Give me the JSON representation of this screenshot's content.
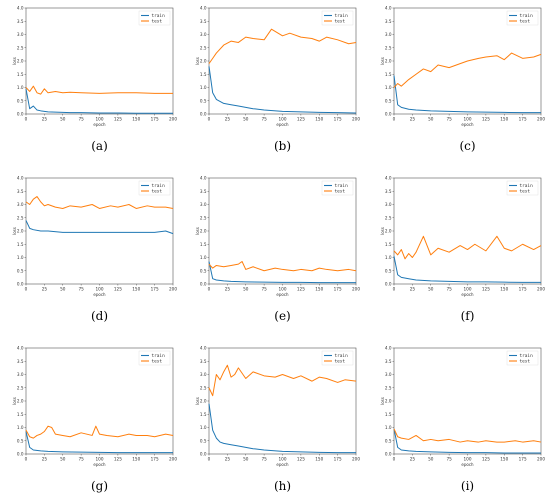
{
  "chart_data": [
    {
      "panel": "(a)",
      "type": "line",
      "xlabel": "epoch",
      "ylabel": "loss",
      "xlim": [
        0,
        200
      ],
      "ylim": [
        0,
        4.0
      ],
      "legend": "top-right",
      "xticks": [
        0,
        25,
        50,
        75,
        100,
        125,
        150,
        175,
        200
      ],
      "yticks": [
        "0.0",
        "0.5",
        "1.0",
        "1.5",
        "2.0",
        "2.5",
        "3.0",
        "3.5",
        "4.0"
      ],
      "series": [
        {
          "name": "train",
          "color": "#1f77b4",
          "x": [
            0,
            5,
            10,
            15,
            20,
            25,
            30,
            40,
            50,
            60,
            75,
            100,
            125,
            150,
            175,
            200
          ],
          "y": [
            0.95,
            0.2,
            0.3,
            0.15,
            0.12,
            0.1,
            0.08,
            0.07,
            0.06,
            0.05,
            0.05,
            0.04,
            0.04,
            0.03,
            0.03,
            0.03
          ]
        },
        {
          "name": "test",
          "color": "#ff7f0e",
          "x": [
            0,
            5,
            10,
            15,
            20,
            25,
            30,
            40,
            50,
            60,
            75,
            100,
            125,
            150,
            175,
            200
          ],
          "y": [
            1.0,
            0.85,
            1.05,
            0.8,
            0.75,
            0.95,
            0.8,
            0.85,
            0.8,
            0.82,
            0.8,
            0.78,
            0.8,
            0.8,
            0.78,
            0.78
          ]
        }
      ]
    },
    {
      "panel": "(b)",
      "type": "line",
      "xlabel": "epoch",
      "ylabel": "loss",
      "xlim": [
        0,
        200
      ],
      "ylim": [
        0,
        4.0
      ],
      "legend": "top-right",
      "xticks": [
        0,
        25,
        50,
        75,
        100,
        125,
        150,
        175,
        200
      ],
      "yticks": [
        "0.0",
        "0.5",
        "1.0",
        "1.5",
        "2.0",
        "2.5",
        "3.0",
        "3.5",
        "4.0"
      ],
      "series": [
        {
          "name": "train",
          "color": "#1f77b4",
          "x": [
            0,
            5,
            10,
            20,
            30,
            40,
            50,
            60,
            75,
            100,
            125,
            150,
            175,
            200
          ],
          "y": [
            1.8,
            0.8,
            0.55,
            0.4,
            0.35,
            0.3,
            0.25,
            0.2,
            0.15,
            0.1,
            0.08,
            0.06,
            0.05,
            0.04
          ]
        },
        {
          "name": "test",
          "color": "#ff7f0e",
          "x": [
            0,
            5,
            10,
            20,
            30,
            40,
            50,
            60,
            75,
            85,
            100,
            110,
            125,
            140,
            150,
            160,
            175,
            190,
            200
          ],
          "y": [
            1.9,
            2.1,
            2.3,
            2.6,
            2.75,
            2.7,
            2.9,
            2.85,
            2.8,
            3.2,
            2.95,
            3.05,
            2.9,
            2.85,
            2.75,
            2.9,
            2.8,
            2.65,
            2.7
          ]
        }
      ]
    },
    {
      "panel": "(c)",
      "type": "line",
      "xlabel": "epoch",
      "ylabel": "loss",
      "xlim": [
        0,
        200
      ],
      "ylim": [
        0,
        4.0
      ],
      "legend": "top-right",
      "xticks": [
        0,
        25,
        50,
        75,
        100,
        125,
        150,
        175,
        200
      ],
      "yticks": [
        "0.0",
        "0.5",
        "1.0",
        "1.5",
        "2.0",
        "2.5",
        "3.0",
        "3.5",
        "4.0"
      ],
      "series": [
        {
          "name": "train",
          "color": "#1f77b4",
          "x": [
            0,
            5,
            10,
            20,
            30,
            50,
            75,
            100,
            125,
            150,
            175,
            200
          ],
          "y": [
            1.45,
            0.35,
            0.25,
            0.18,
            0.15,
            0.12,
            0.1,
            0.08,
            0.07,
            0.06,
            0.05,
            0.05
          ]
        },
        {
          "name": "test",
          "color": "#ff7f0e",
          "x": [
            0,
            5,
            10,
            20,
            30,
            40,
            50,
            60,
            75,
            90,
            100,
            115,
            125,
            140,
            150,
            160,
            175,
            190,
            200
          ],
          "y": [
            1.0,
            1.15,
            1.05,
            1.3,
            1.5,
            1.7,
            1.6,
            1.85,
            1.75,
            1.9,
            2.0,
            2.1,
            2.15,
            2.2,
            2.05,
            2.3,
            2.1,
            2.15,
            2.25
          ]
        }
      ]
    },
    {
      "panel": "(d)",
      "type": "line",
      "xlabel": "epoch",
      "ylabel": "loss",
      "xlim": [
        0,
        200
      ],
      "ylim": [
        0,
        4.0
      ],
      "legend": "top-right",
      "xticks": [
        0,
        25,
        50,
        75,
        100,
        125,
        150,
        175,
        200
      ],
      "yticks": [
        "0.0",
        "0.5",
        "1.0",
        "1.5",
        "2.0",
        "2.5",
        "3.0",
        "3.5",
        "4.0"
      ],
      "series": [
        {
          "name": "train",
          "color": "#1f77b4",
          "x": [
            0,
            5,
            10,
            20,
            30,
            50,
            75,
            100,
            125,
            150,
            175,
            190,
            200
          ],
          "y": [
            2.4,
            2.1,
            2.05,
            2.0,
            2.0,
            1.95,
            1.95,
            1.95,
            1.95,
            1.95,
            1.95,
            2.0,
            1.9
          ]
        },
        {
          "name": "test",
          "color": "#ff7f0e",
          "x": [
            0,
            5,
            10,
            15,
            20,
            25,
            30,
            40,
            50,
            60,
            75,
            90,
            100,
            115,
            125,
            140,
            150,
            165,
            175,
            190,
            200
          ],
          "y": [
            3.1,
            3.0,
            3.2,
            3.3,
            3.1,
            2.95,
            3.0,
            2.9,
            2.85,
            2.95,
            2.9,
            3.0,
            2.85,
            2.95,
            2.9,
            3.0,
            2.85,
            2.95,
            2.9,
            2.9,
            2.85
          ]
        }
      ]
    },
    {
      "panel": "(e)",
      "type": "line",
      "xlabel": "epoch",
      "ylabel": "loss",
      "xlim": [
        0,
        200
      ],
      "ylim": [
        0,
        4.0
      ],
      "legend": "top-right",
      "xticks": [
        0,
        25,
        50,
        75,
        100,
        125,
        150,
        175,
        200
      ],
      "yticks": [
        "0.0",
        "0.5",
        "1.0",
        "1.5",
        "2.0",
        "2.5",
        "3.0",
        "3.5",
        "4.0"
      ],
      "series": [
        {
          "name": "train",
          "color": "#1f77b4",
          "x": [
            0,
            5,
            10,
            20,
            30,
            50,
            75,
            100,
            125,
            150,
            175,
            200
          ],
          "y": [
            0.85,
            0.2,
            0.15,
            0.12,
            0.1,
            0.08,
            0.07,
            0.06,
            0.06,
            0.05,
            0.05,
            0.05
          ]
        },
        {
          "name": "test",
          "color": "#ff7f0e",
          "x": [
            0,
            5,
            10,
            20,
            30,
            40,
            45,
            50,
            60,
            75,
            90,
            100,
            115,
            125,
            140,
            150,
            160,
            175,
            190,
            200
          ],
          "y": [
            0.75,
            0.6,
            0.7,
            0.65,
            0.7,
            0.75,
            0.85,
            0.55,
            0.65,
            0.5,
            0.6,
            0.55,
            0.5,
            0.55,
            0.5,
            0.6,
            0.55,
            0.5,
            0.55,
            0.5
          ]
        }
      ]
    },
    {
      "panel": "(f)",
      "type": "line",
      "xlabel": "epoch",
      "ylabel": "loss",
      "xlim": [
        0,
        200
      ],
      "ylim": [
        0,
        4.0
      ],
      "legend": "top-right",
      "xticks": [
        0,
        25,
        50,
        75,
        100,
        125,
        150,
        175,
        200
      ],
      "yticks": [
        "0.0",
        "0.5",
        "1.0",
        "1.5",
        "2.0",
        "2.5",
        "3.0",
        "3.5",
        "4.0"
      ],
      "series": [
        {
          "name": "train",
          "color": "#1f77b4",
          "x": [
            0,
            5,
            10,
            20,
            30,
            50,
            75,
            100,
            125,
            150,
            175,
            200
          ],
          "y": [
            1.05,
            0.35,
            0.25,
            0.2,
            0.15,
            0.12,
            0.1,
            0.08,
            0.08,
            0.07,
            0.06,
            0.06
          ]
        },
        {
          "name": "test",
          "color": "#ff7f0e",
          "x": [
            0,
            5,
            10,
            15,
            20,
            25,
            30,
            40,
            50,
            60,
            75,
            90,
            100,
            110,
            125,
            140,
            150,
            160,
            175,
            190,
            200
          ],
          "y": [
            1.25,
            1.1,
            1.3,
            0.95,
            1.15,
            1.0,
            1.2,
            1.8,
            1.1,
            1.35,
            1.2,
            1.45,
            1.3,
            1.5,
            1.25,
            1.8,
            1.35,
            1.25,
            1.5,
            1.3,
            1.45
          ]
        }
      ]
    },
    {
      "panel": "(g)",
      "type": "line",
      "xlabel": "epoch",
      "ylabel": "loss",
      "xlim": [
        0,
        200
      ],
      "ylim": [
        0,
        4.0
      ],
      "legend": "top-right",
      "xticks": [
        0,
        25,
        50,
        75,
        100,
        125,
        150,
        175,
        200
      ],
      "yticks": [
        "0.0",
        "0.5",
        "1.0",
        "1.5",
        "2.0",
        "2.5",
        "3.0",
        "3.5",
        "4.0"
      ],
      "series": [
        {
          "name": "train",
          "color": "#1f77b4",
          "x": [
            0,
            5,
            10,
            20,
            30,
            50,
            75,
            100,
            125,
            150,
            175,
            200
          ],
          "y": [
            0.85,
            0.25,
            0.15,
            0.12,
            0.1,
            0.08,
            0.07,
            0.06,
            0.05,
            0.05,
            0.05,
            0.05
          ]
        },
        {
          "name": "test",
          "color": "#ff7f0e",
          "x": [
            0,
            5,
            10,
            15,
            20,
            25,
            30,
            35,
            40,
            50,
            60,
            75,
            90,
            95,
            100,
            110,
            125,
            140,
            150,
            165,
            175,
            190,
            200
          ],
          "y": [
            0.9,
            0.65,
            0.6,
            0.7,
            0.75,
            0.85,
            1.05,
            1.0,
            0.75,
            0.7,
            0.65,
            0.8,
            0.7,
            1.05,
            0.75,
            0.7,
            0.65,
            0.75,
            0.7,
            0.7,
            0.65,
            0.75,
            0.7
          ]
        }
      ]
    },
    {
      "panel": "(h)",
      "type": "line",
      "xlabel": "epoch",
      "ylabel": "loss",
      "xlim": [
        0,
        200
      ],
      "ylim": [
        0,
        4.0
      ],
      "legend": "top-right",
      "xticks": [
        0,
        25,
        50,
        75,
        100,
        125,
        150,
        175,
        200
      ],
      "yticks": [
        "0.0",
        "0.5",
        "1.0",
        "1.5",
        "2.0",
        "2.5",
        "3.0",
        "3.5",
        "4.0"
      ],
      "series": [
        {
          "name": "train",
          "color": "#1f77b4",
          "x": [
            0,
            5,
            10,
            15,
            20,
            30,
            40,
            50,
            60,
            75,
            100,
            125,
            150,
            175,
            200
          ],
          "y": [
            1.9,
            0.9,
            0.6,
            0.45,
            0.4,
            0.35,
            0.3,
            0.25,
            0.2,
            0.15,
            0.1,
            0.08,
            0.06,
            0.05,
            0.05
          ]
        },
        {
          "name": "test",
          "color": "#ff7f0e",
          "x": [
            0,
            5,
            10,
            15,
            20,
            25,
            30,
            35,
            40,
            50,
            60,
            75,
            90,
            100,
            115,
            125,
            140,
            150,
            160,
            175,
            185,
            200
          ],
          "y": [
            2.5,
            2.2,
            3.0,
            2.8,
            3.1,
            3.35,
            2.9,
            3.0,
            3.25,
            2.85,
            3.1,
            2.95,
            2.9,
            3.0,
            2.85,
            2.95,
            2.75,
            2.9,
            2.85,
            2.7,
            2.8,
            2.75
          ]
        }
      ]
    },
    {
      "panel": "(i)",
      "type": "line",
      "xlabel": "epoch",
      "ylabel": "loss",
      "xlim": [
        0,
        200
      ],
      "ylim": [
        0,
        4.0
      ],
      "legend": "top-right",
      "xticks": [
        0,
        25,
        50,
        75,
        100,
        125,
        150,
        175,
        200
      ],
      "yticks": [
        "0.0",
        "0.5",
        "1.0",
        "1.5",
        "2.0",
        "2.5",
        "3.0",
        "3.5",
        "4.0"
      ],
      "series": [
        {
          "name": "train",
          "color": "#1f77b4",
          "x": [
            0,
            5,
            10,
            20,
            30,
            50,
            75,
            100,
            125,
            150,
            175,
            200
          ],
          "y": [
            0.95,
            0.25,
            0.15,
            0.12,
            0.1,
            0.08,
            0.06,
            0.05,
            0.05,
            0.04,
            0.04,
            0.04
          ]
        },
        {
          "name": "test",
          "color": "#ff7f0e",
          "x": [
            0,
            5,
            10,
            20,
            30,
            40,
            50,
            60,
            75,
            90,
            100,
            115,
            125,
            140,
            150,
            165,
            175,
            190,
            200
          ],
          "y": [
            0.95,
            0.65,
            0.6,
            0.55,
            0.7,
            0.5,
            0.55,
            0.5,
            0.55,
            0.45,
            0.5,
            0.45,
            0.5,
            0.45,
            0.45,
            0.5,
            0.45,
            0.5,
            0.45
          ]
        }
      ]
    }
  ]
}
